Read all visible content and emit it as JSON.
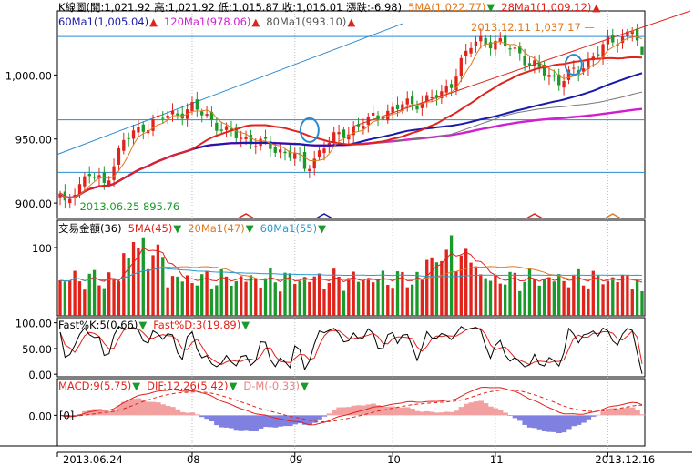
{
  "chart_data": [
    {
      "type": "candlestick",
      "panel": "price",
      "header_line1": [
        {
          "text": "K線圖(開:1,021.92 高:1,021.92 低:1,015.87 收:1,016.01 漲跌:-6.98)",
          "color": "#000000"
        },
        {
          "text": "5MA(1,022.77)",
          "color": "#e07a20"
        },
        {
          "text": "▼",
          "color": "#1a9a2a"
        },
        {
          "text": "28Ma1(1,009.12)",
          "color": "#e0231b"
        },
        {
          "text": "▲",
          "color": "#e0231b"
        }
      ],
      "header_line2": [
        {
          "text": "60Ma1(1,005.04)",
          "color": "#1a1aa8"
        },
        {
          "text": "▲",
          "color": "#e0231b"
        },
        {
          "text": "120Ma1(978.06)",
          "color": "#d01fd0"
        },
        {
          "text": "▲",
          "color": "#e0231b"
        },
        {
          "text": "80Ma1(993.10)",
          "color": "#555555"
        },
        {
          "text": "▲",
          "color": "#e0231b"
        }
      ],
      "yticks": [
        "1,000.00",
        "950.00",
        "900.00"
      ],
      "ytick_values": [
        1000,
        950,
        900
      ],
      "ylim": [
        888,
        1050
      ],
      "annotations": [
        {
          "text": "2013.12.11  1,037.17 —",
          "color": "#e07a20"
        },
        {
          "text": "2013.06.25  895.76",
          "color": "#1a9a2a"
        }
      ],
      "ma_values": {
        "ma5": 1022.77,
        "ma28": 1009.12,
        "ma60": 1005.04,
        "ma80": 993.1,
        "ma120": 978.06
      },
      "ma_colors": {
        "ma5": "#e07a20",
        "ma28": "#e0231b",
        "ma60": "#1a1aa8",
        "ma80": "#777777",
        "ma120": "#d01fd0"
      },
      "horizontal_levels": [
        1030,
        965,
        924
      ],
      "last_candle": {
        "open": 1021.92,
        "high": 1021.92,
        "low": 1015.87,
        "close": 1016.01,
        "change": -6.98
      },
      "high_point": {
        "date": "2013.12.11",
        "value": 1037.17
      },
      "low_point": {
        "date": "2013.06.25",
        "value": 895.76
      },
      "up_color": "#e0231b",
      "down_color": "#1a9a2a"
    },
    {
      "type": "bar",
      "panel": "volume",
      "header": [
        {
          "text": "交易金額(36)",
          "color": "#000000"
        },
        {
          "text": "5MA(45)",
          "color": "#e0231b"
        },
        {
          "text": "▼",
          "color": "#1a9a2a"
        },
        {
          "text": "20Ma1(47)",
          "color": "#e07a20"
        },
        {
          "text": "▼",
          "color": "#1a9a2a"
        },
        {
          "text": "60Ma1(55)",
          "color": "#2a9ad0"
        },
        {
          "text": "▼",
          "color": "#1a9a2a"
        }
      ],
      "yticks": [
        "100"
      ],
      "ytick_values": [
        100
      ],
      "ylim": [
        0,
        140
      ],
      "last_value": 36,
      "ma_values": {
        "ma5": 45,
        "ma20": 47,
        "ma60": 55
      }
    },
    {
      "type": "line",
      "panel": "kd",
      "header": [
        {
          "text": "Fast%K:5(0.66)",
          "color": "#000000"
        },
        {
          "text": "▼",
          "color": "#1a9a2a"
        },
        {
          "text": "Fast%D:3(19.89)",
          "color": "#e0231b"
        },
        {
          "text": "▼",
          "color": "#1a9a2a"
        }
      ],
      "yticks": [
        "100.00",
        "50.00",
        "0.00"
      ],
      "ytick_values": [
        100,
        50,
        0
      ],
      "ylim": [
        -5,
        110
      ],
      "series": [
        {
          "name": "Fast%K:5",
          "last": 0.66,
          "color": "#000000"
        },
        {
          "name": "Fast%D:3",
          "last": 19.89,
          "color": "#e0231b"
        }
      ]
    },
    {
      "type": "bar",
      "panel": "macd",
      "header": [
        {
          "text": "MACD:9(5.75)",
          "color": "#e0231b"
        },
        {
          "text": "▼",
          "color": "#1a9a2a"
        },
        {
          "text": "DIF:12,26(5.42)",
          "color": "#e0231b"
        },
        {
          "text": "▼",
          "color": "#1a9a2a"
        },
        {
          "text": "D-M(-0.33)",
          "color": "#f08080"
        },
        {
          "text": "▼",
          "color": "#1a9a2a"
        }
      ],
      "yticks": [
        "0.00"
      ],
      "ytick_values": [
        0
      ],
      "zero_tag": "[0]",
      "ylim": [
        -10,
        12
      ],
      "series": [
        {
          "name": "MACD:9",
          "last": 5.75
        },
        {
          "name": "DIF:12,26",
          "last": 5.42
        },
        {
          "name": "D-M",
          "last": -0.33
        }
      ],
      "pos_color": "#f2a0a0",
      "neg_color": "#8080e0"
    }
  ],
  "x_axis": {
    "labels": [
      "2013.06.24",
      "08",
      "09",
      "10",
      "11",
      "2013.12.16"
    ]
  }
}
